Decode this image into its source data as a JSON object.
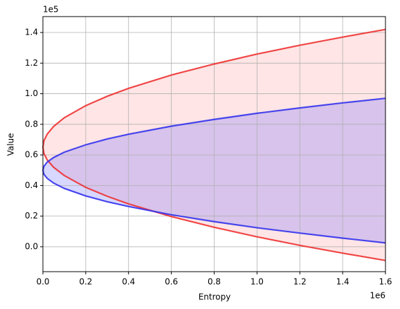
{
  "chart_data": {
    "type": "band",
    "xlabel": "Entropy",
    "ylabel": "Value",
    "x_offset_label": "1e6",
    "y_offset_label": "1e5",
    "xlim": [
      0,
      1.6
    ],
    "ylim": [
      -0.163,
      1.504
    ],
    "grid": true,
    "xticks": [
      {
        "value": 0,
        "label": "0.0"
      },
      0.2,
      0.4,
      0.6,
      0.8,
      {
        "value": 1,
        "label": "1.0"
      },
      1.2,
      1.4,
      1.6
    ],
    "yticks": [
      {
        "value": 0,
        "label": "0.0"
      },
      0.2,
      0.4,
      0.6,
      0.8,
      {
        "value": 1,
        "label": "1.0"
      },
      1.2,
      1.4
    ],
    "x": [
      0,
      0.005,
      0.02,
      0.05,
      0.1,
      0.2,
      0.3,
      0.4,
      0.6,
      0.8,
      1.0,
      1.2,
      1.4,
      1.6
    ],
    "bands": [
      {
        "color": "#ee3333",
        "fill": "#ffe2e2",
        "upper": [
          0.65,
          0.693,
          0.736,
          0.786,
          0.843,
          0.922,
          0.983,
          1.035,
          1.122,
          1.194,
          1.259,
          1.317,
          1.37,
          1.42
        ],
        "lower": [
          0.65,
          0.609,
          0.567,
          0.519,
          0.465,
          0.388,
          0.33,
          0.28,
          0.197,
          0.127,
          0.065,
          0.009,
          -0.042,
          -0.09
        ]
      },
      {
        "color": "#3333ee",
        "fill": "#6060ff",
        "upper": [
          0.5,
          0.526,
          0.553,
          0.583,
          0.618,
          0.666,
          0.704,
          0.735,
          0.788,
          0.832,
          0.872,
          0.907,
          0.94,
          0.97
        ],
        "lower": [
          0.5,
          0.473,
          0.447,
          0.416,
          0.381,
          0.332,
          0.294,
          0.263,
          0.209,
          0.164,
          0.124,
          0.089,
          0.056,
          0.025
        ]
      }
    ]
  }
}
